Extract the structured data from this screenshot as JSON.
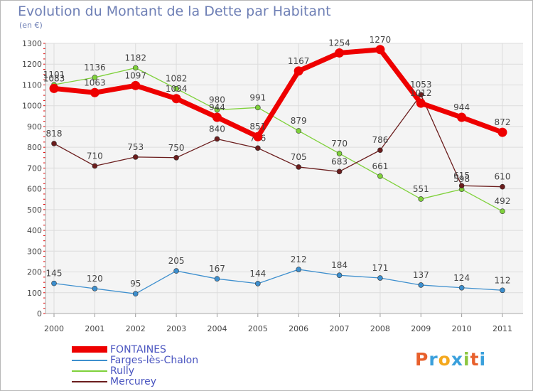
{
  "title": "Evolution du Montant de la Dette par Habitant",
  "subtitle": "(en €)",
  "logo": {
    "text": "Proxiti",
    "letters": [
      "P",
      "r",
      "o",
      "x",
      "i",
      "t",
      "i"
    ],
    "colors": [
      "#e8602c",
      "#3aa0dc",
      "#f4a81d",
      "#3aa0dc",
      "#8cc63f",
      "#e8602c",
      "#3aa0dc"
    ]
  },
  "chart_data": {
    "type": "line",
    "title": "Evolution du Montant de la Dette par Habitant",
    "ylabel": "(en €)",
    "xlabel": "",
    "ylim": [
      0,
      1300
    ],
    "ytick_step": 100,
    "x": [
      "2000",
      "2001",
      "2002",
      "2003",
      "2004",
      "2005",
      "2006",
      "2007",
      "2008",
      "2009",
      "2010",
      "2011"
    ],
    "grid": true,
    "series": [
      {
        "name": "FONTAINES",
        "color": "#ee0000",
        "thick": true,
        "values": [
          1083,
          1063,
          1097,
          1034,
          944,
          851,
          1167,
          1254,
          1270,
          1012,
          944,
          872
        ]
      },
      {
        "name": "Farges-lès-Chalon",
        "color": "#3d8fce",
        "thick": false,
        "values": [
          145,
          120,
          95,
          205,
          167,
          144,
          212,
          184,
          171,
          137,
          124,
          112
        ]
      },
      {
        "name": "Rully",
        "color": "#7fd13b",
        "thick": false,
        "values": [
          1101,
          1136,
          1182,
          1082,
          980,
          991,
          879,
          770,
          661,
          551,
          598,
          492
        ]
      },
      {
        "name": "Mercurey",
        "color": "#6b1d1d",
        "thick": false,
        "values": [
          818,
          710,
          753,
          750,
          840,
          796,
          705,
          683,
          786,
          1053,
          615,
          610
        ]
      }
    ]
  }
}
